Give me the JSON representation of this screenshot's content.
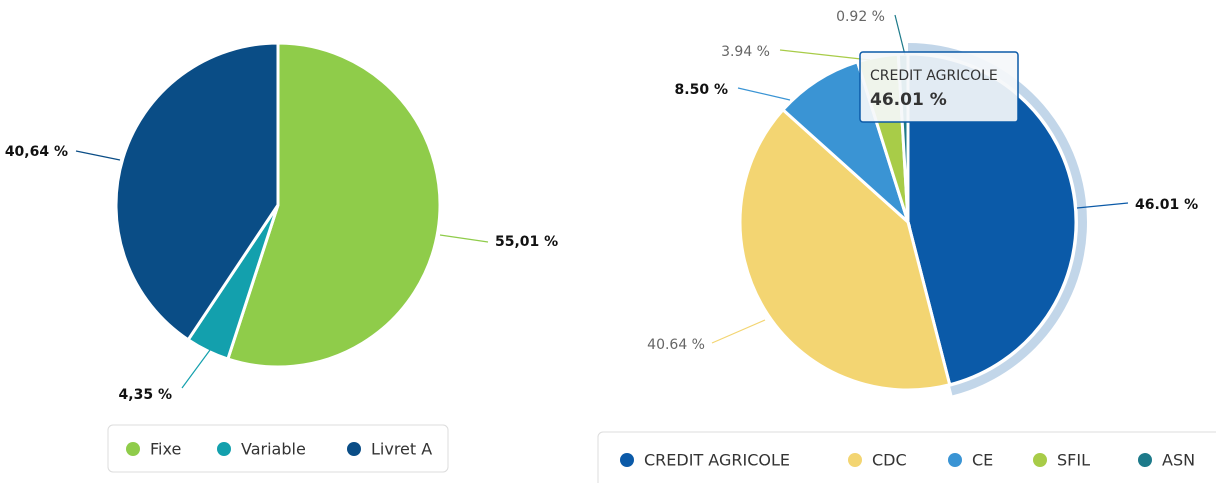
{
  "chart_data": [
    {
      "type": "pie",
      "categories": [
        "Fixe",
        "Variable",
        "Livret A"
      ],
      "values": [
        55.01,
        4.35,
        40.64
      ],
      "value_labels": [
        "55,01 %",
        "4,35 %",
        "40,64 %"
      ],
      "colors": [
        "#8fcc4a",
        "#13a0ad",
        "#0a4d86"
      ],
      "legend": "bottom"
    },
    {
      "type": "pie",
      "categories": [
        "CREDIT AGRICOLE",
        "CDC",
        "CE",
        "SFIL",
        "ASN"
      ],
      "values": [
        46.01,
        40.64,
        8.5,
        3.94,
        0.92
      ],
      "value_labels": [
        "46.01 %",
        "40.64 %",
        "8.50 %",
        "3.94 %",
        "0.92 %"
      ],
      "colors": [
        "#0b5aa8",
        "#f3d572",
        "#3a94d4",
        "#a8cc48",
        "#1d7a8a"
      ],
      "legend": "bottom"
    }
  ]
}
